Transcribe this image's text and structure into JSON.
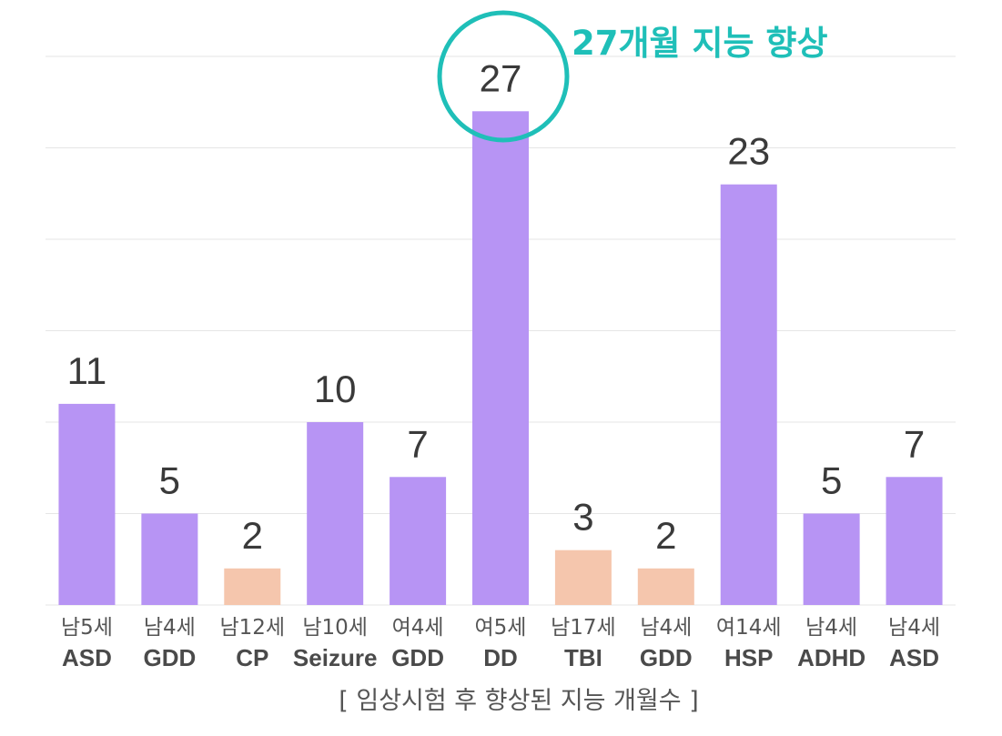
{
  "chart_data": {
    "type": "bar",
    "categories": [
      {
        "line1": "남5세",
        "line2": "ASD"
      },
      {
        "line1": "남4세",
        "line2": "GDD"
      },
      {
        "line1": "남12세",
        "line2": "CP"
      },
      {
        "line1": "남10세",
        "line2": "Seizure"
      },
      {
        "line1": "여4세",
        "line2": "GDD"
      },
      {
        "line1": "여5세",
        "line2": "DD"
      },
      {
        "line1": "남17세",
        "line2": "TBI"
      },
      {
        "line1": "남4세",
        "line2": "GDD"
      },
      {
        "line1": "여14세",
        "line2": "HSP"
      },
      {
        "line1": "남4세",
        "line2": "ADHD"
      },
      {
        "line1": "남4세",
        "line2": "ASD"
      }
    ],
    "values": [
      11,
      5,
      2,
      10,
      7,
      27,
      3,
      2,
      23,
      5,
      7
    ],
    "highlight": [
      false,
      false,
      true,
      false,
      false,
      false,
      true,
      true,
      false,
      false,
      false
    ],
    "data_labels": [
      "11",
      "5",
      "2",
      "10",
      "7",
      "27",
      "3",
      "2",
      "23",
      "5",
      "7"
    ],
    "xlabel": "[ 임상시험 후 향상된 지능 개월수 ]",
    "ylabel": "",
    "ylim": [
      0,
      30
    ],
    "grid": true,
    "colors": {
      "default": "#b794f4",
      "highlight": "#f5c6ad",
      "annotation": "#1fbfb8"
    },
    "annotation": {
      "text": "27개월 지능 향상",
      "target_index": 5
    }
  }
}
